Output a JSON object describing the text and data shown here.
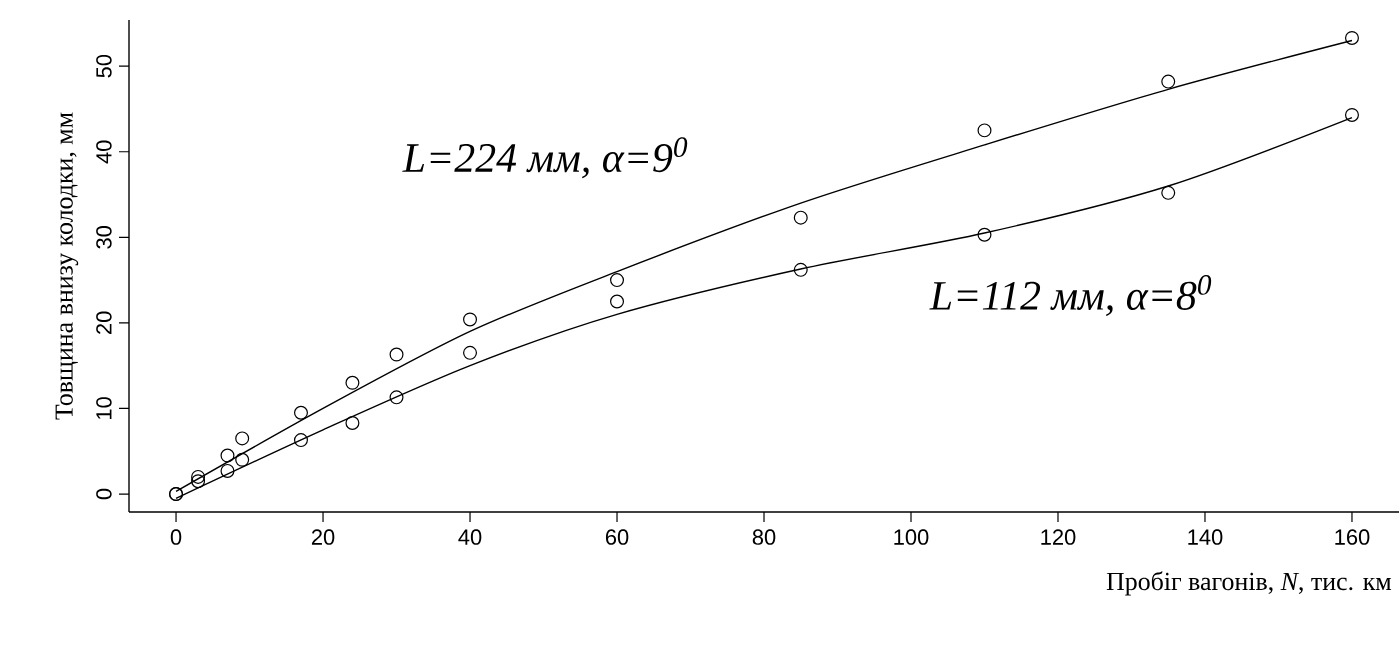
{
  "chart_data": {
    "type": "scatter",
    "xlabel": "Пробіг вагонів, *N*, тис. км",
    "ylabel": "Товщина внизу колодки, мм",
    "xlim": [
      -6.4,
      166.4
    ],
    "ylim": [
      -2.1,
      55.4
    ],
    "xticks": [
      0,
      20,
      40,
      60,
      80,
      100,
      120,
      140,
      160
    ],
    "yticks": [
      0,
      10,
      20,
      30,
      40,
      50
    ],
    "grid": false,
    "marker": "circle",
    "series": [
      {
        "color": "#000000",
        "x": [
          0,
          3,
          7,
          9,
          17,
          24,
          30,
          40,
          60,
          85,
          110,
          135,
          160
        ],
        "values": [
          0,
          2,
          4.5,
          6.5,
          9.5,
          13,
          16.3,
          20.4,
          25,
          32.3,
          42.5,
          48.2,
          53.3
        ]
      },
      {
        "color": "#000000",
        "x": [
          0,
          3,
          7,
          9,
          17,
          24,
          30,
          40,
          60,
          85,
          110,
          135,
          160
        ],
        "values": [
          0,
          1.5,
          2.7,
          4,
          6.3,
          8.3,
          11.3,
          16.5,
          22.5,
          26.2,
          30.3,
          35.2,
          44.3
        ]
      },
      {
        "type": "line",
        "color": "#000000",
        "marker": "none",
        "x": [
          0,
          20,
          40,
          60,
          85,
          110,
          135,
          160
        ],
        "values": [
          0.3,
          10,
          19,
          26,
          34,
          40.8,
          47.3,
          53
        ]
      },
      {
        "type": "line",
        "color": "#000000",
        "marker": "none",
        "x": [
          0,
          20,
          40,
          60,
          85,
          110,
          135,
          160
        ],
        "values": [
          -0.5,
          7.5,
          15,
          21,
          26.3,
          30.5,
          36,
          44
        ]
      }
    ],
    "annotations": [
      "L=224 мм, α=9$^{0}$",
      "L=112 мм, α=8$^{0}$"
    ]
  }
}
